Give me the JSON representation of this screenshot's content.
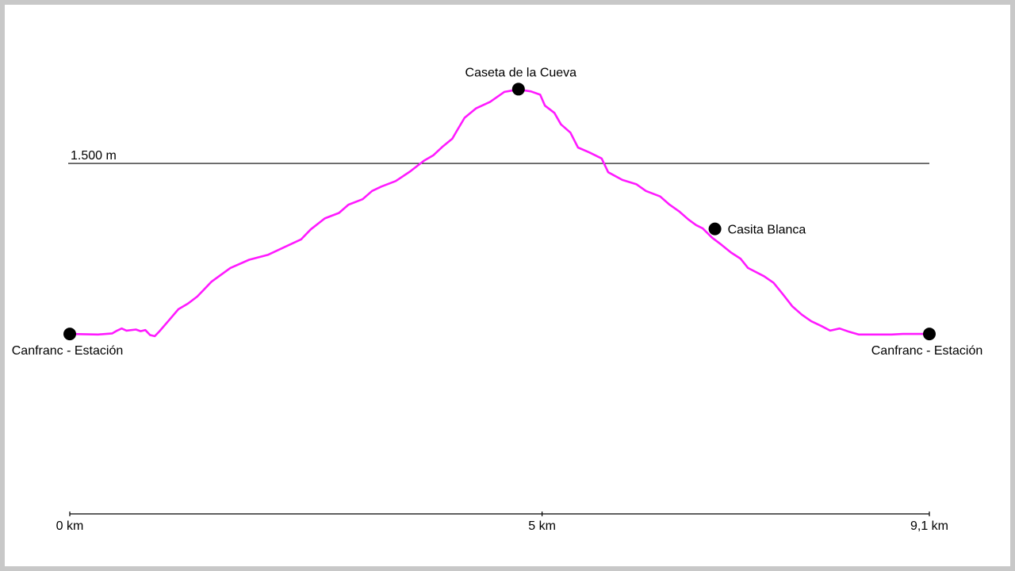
{
  "chart_data": {
    "type": "line",
    "x_unit": "km",
    "y_unit": "m",
    "xlim": [
      0,
      9.1
    ],
    "ylim": [
      860,
      1725
    ],
    "x_ticks": [
      {
        "value": 0,
        "label": "0 km"
      },
      {
        "value": 5,
        "label": "5 km"
      },
      {
        "value": 9.1,
        "label": "9,1 km"
      }
    ],
    "reference_line": {
      "value": 1500,
      "label": "1.500 m"
    },
    "line_color": "#ff1aff",
    "profile": [
      [
        0.0,
        1190
      ],
      [
        0.3,
        1189
      ],
      [
        0.45,
        1191
      ],
      [
        0.5,
        1196
      ],
      [
        0.55,
        1200
      ],
      [
        0.6,
        1196
      ],
      [
        0.7,
        1198
      ],
      [
        0.75,
        1195
      ],
      [
        0.8,
        1197
      ],
      [
        0.85,
        1188
      ],
      [
        0.9,
        1186
      ],
      [
        0.95,
        1195
      ],
      [
        1.05,
        1215
      ],
      [
        1.15,
        1235
      ],
      [
        1.25,
        1245
      ],
      [
        1.35,
        1258
      ],
      [
        1.5,
        1285
      ],
      [
        1.7,
        1310
      ],
      [
        1.9,
        1325
      ],
      [
        2.1,
        1334
      ],
      [
        2.3,
        1350
      ],
      [
        2.45,
        1362
      ],
      [
        2.55,
        1380
      ],
      [
        2.7,
        1400
      ],
      [
        2.85,
        1410
      ],
      [
        2.95,
        1425
      ],
      [
        3.1,
        1435
      ],
      [
        3.2,
        1450
      ],
      [
        3.3,
        1458
      ],
      [
        3.45,
        1468
      ],
      [
        3.6,
        1485
      ],
      [
        3.75,
        1505
      ],
      [
        3.85,
        1515
      ],
      [
        3.95,
        1531
      ],
      [
        4.05,
        1545
      ],
      [
        4.1,
        1560
      ],
      [
        4.18,
        1583
      ],
      [
        4.3,
        1600
      ],
      [
        4.45,
        1612
      ],
      [
        4.6,
        1630
      ],
      [
        4.7,
        1633
      ],
      [
        4.8,
        1633
      ],
      [
        4.88,
        1631
      ],
      [
        4.98,
        1625
      ],
      [
        5.03,
        1605
      ],
      [
        5.13,
        1592
      ],
      [
        5.2,
        1571
      ],
      [
        5.3,
        1556
      ],
      [
        5.38,
        1529
      ],
      [
        5.5,
        1520
      ],
      [
        5.63,
        1509
      ],
      [
        5.7,
        1484
      ],
      [
        5.85,
        1470
      ],
      [
        6.0,
        1462
      ],
      [
        6.1,
        1450
      ],
      [
        6.25,
        1440
      ],
      [
        6.35,
        1425
      ],
      [
        6.45,
        1413
      ],
      [
        6.55,
        1398
      ],
      [
        6.63,
        1388
      ],
      [
        6.7,
        1382
      ],
      [
        6.8,
        1365
      ],
      [
        6.9,
        1352
      ],
      [
        7.0,
        1338
      ],
      [
        7.1,
        1327
      ],
      [
        7.18,
        1310
      ],
      [
        7.35,
        1295
      ],
      [
        7.45,
        1283
      ],
      [
        7.55,
        1262
      ],
      [
        7.65,
        1240
      ],
      [
        7.75,
        1225
      ],
      [
        7.85,
        1213
      ],
      [
        7.95,
        1205
      ],
      [
        8.05,
        1196
      ],
      [
        8.15,
        1200
      ],
      [
        8.25,
        1194
      ],
      [
        8.35,
        1189
      ],
      [
        8.5,
        1189
      ],
      [
        8.7,
        1189
      ],
      [
        8.82,
        1190
      ],
      [
        9.1,
        1190
      ]
    ],
    "waypoints": [
      {
        "name": "Canfranc - Estación",
        "x": 0.0,
        "y": 1190,
        "label_side": "below"
      },
      {
        "name": "Caseta de la Cueva",
        "x": 4.75,
        "y": 1635,
        "label_side": "above"
      },
      {
        "name": "Casita Blanca",
        "x": 6.83,
        "y": 1381,
        "label_side": "right"
      },
      {
        "name": "Canfranc - Estación",
        "x": 9.1,
        "y": 1190,
        "label_side": "below"
      }
    ]
  }
}
